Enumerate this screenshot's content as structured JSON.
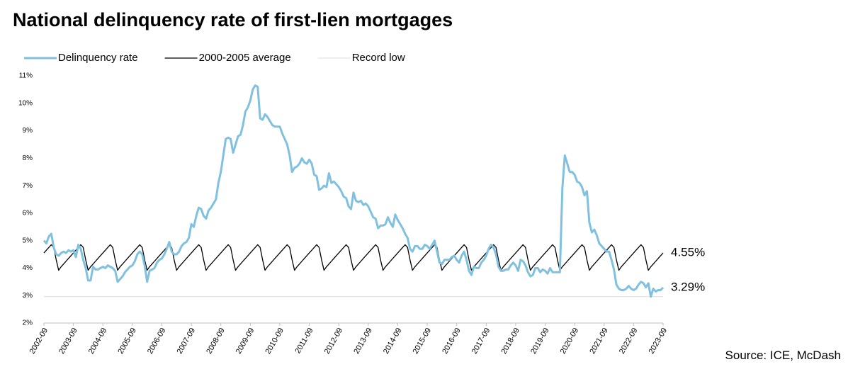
{
  "chart_data": {
    "type": "line",
    "title": "National delinquency rate of first-lien mortgages",
    "source": "Source: ICE, McDash",
    "legend": "top-left",
    "grid": false,
    "ylim": [
      2,
      11
    ],
    "yticks": [
      {
        "value": 2,
        "label": "2%"
      },
      {
        "value": 3,
        "label": "3%"
      },
      {
        "value": 4,
        "label": "4%"
      },
      {
        "value": 5,
        "label": "5%"
      },
      {
        "value": 6,
        "label": "6%"
      },
      {
        "value": 7,
        "label": "7%"
      },
      {
        "value": 8,
        "label": "8%"
      },
      {
        "value": 9,
        "label": "9%"
      },
      {
        "value": 10,
        "label": "10%"
      },
      {
        "value": 11,
        "label": "11%"
      }
    ],
    "categories": [
      "2002-09",
      null,
      null,
      null,
      null,
      null,
      null,
      null,
      null,
      null,
      null,
      null,
      "2003-09",
      null,
      null,
      null,
      null,
      null,
      null,
      null,
      null,
      null,
      null,
      null,
      "2004-09",
      null,
      null,
      null,
      null,
      null,
      null,
      null,
      null,
      null,
      null,
      null,
      "2005-09",
      null,
      null,
      null,
      null,
      null,
      null,
      null,
      null,
      null,
      null,
      null,
      "2006-09",
      null,
      null,
      null,
      null,
      null,
      null,
      null,
      null,
      null,
      null,
      null,
      "2007-09",
      null,
      null,
      null,
      null,
      null,
      null,
      null,
      null,
      null,
      null,
      null,
      "2008-09",
      null,
      null,
      null,
      null,
      null,
      null,
      null,
      null,
      null,
      null,
      null,
      "2009-09",
      null,
      null,
      null,
      null,
      null,
      null,
      null,
      null,
      null,
      null,
      null,
      "2010-09",
      null,
      null,
      null,
      null,
      null,
      null,
      null,
      null,
      null,
      null,
      null,
      "2011-09",
      null,
      null,
      null,
      null,
      null,
      null,
      null,
      null,
      null,
      null,
      null,
      "2012-09",
      null,
      null,
      null,
      null,
      null,
      null,
      null,
      null,
      null,
      null,
      null,
      "2013-09",
      null,
      null,
      null,
      null,
      null,
      null,
      null,
      null,
      null,
      null,
      null,
      "2014-09",
      null,
      null,
      null,
      null,
      null,
      null,
      null,
      null,
      null,
      null,
      null,
      "2015-09",
      null,
      null,
      null,
      null,
      null,
      null,
      null,
      null,
      null,
      null,
      null,
      "2016-09",
      null,
      null,
      null,
      null,
      null,
      null,
      null,
      null,
      null,
      null,
      null,
      "2017-09",
      null,
      null,
      null,
      null,
      null,
      null,
      null,
      null,
      null,
      null,
      null,
      "2018-09",
      null,
      null,
      null,
      null,
      null,
      null,
      null,
      null,
      null,
      null,
      null,
      "2019-09",
      null,
      null,
      null,
      null,
      null,
      null,
      null,
      null,
      null,
      null,
      null,
      "2020-09",
      null,
      null,
      null,
      null,
      null,
      null,
      null,
      null,
      null,
      null,
      null,
      "2021-09",
      null,
      null,
      null,
      null,
      null,
      null,
      null,
      null,
      null,
      null,
      null,
      "2022-09",
      null,
      null,
      null,
      null,
      null,
      null,
      null,
      null,
      null,
      null,
      null,
      "2023-09"
    ],
    "series": [
      {
        "name": "Delinquency rate",
        "color": "#7fc1de",
        "width": 3,
        "values": [
          5.0,
          4.9,
          5.15,
          5.25,
          4.75,
          4.5,
          4.45,
          4.55,
          4.6,
          4.55,
          4.65,
          4.6,
          4.65,
          4.4,
          4.85,
          4.7,
          4.3,
          4.0,
          3.55,
          3.55,
          4.05,
          3.95,
          3.95,
          4.0,
          4.05,
          4.0,
          4.1,
          4.05,
          4.0,
          3.9,
          3.5,
          3.6,
          3.7,
          3.85,
          3.95,
          4.05,
          4.1,
          4.25,
          4.5,
          4.6,
          4.5,
          4.1,
          3.5,
          3.9,
          3.95,
          4.0,
          4.2,
          4.3,
          4.35,
          4.5,
          4.7,
          4.95,
          4.6,
          4.5,
          4.5,
          4.6,
          4.8,
          4.9,
          4.95,
          5.1,
          5.6,
          5.5,
          5.9,
          6.2,
          6.15,
          5.9,
          5.8,
          6.1,
          6.2,
          6.35,
          6.5,
          7.1,
          7.5,
          8.1,
          8.7,
          8.75,
          8.7,
          8.2,
          8.5,
          8.8,
          8.85,
          9.2,
          9.7,
          9.85,
          10.1,
          10.5,
          10.65,
          10.6,
          9.45,
          9.4,
          9.6,
          9.5,
          9.35,
          9.2,
          9.15,
          9.15,
          9.15,
          8.9,
          8.7,
          8.5,
          8.1,
          7.5,
          7.65,
          7.7,
          7.8,
          8.0,
          7.85,
          7.8,
          7.95,
          7.8,
          7.4,
          7.35,
          6.85,
          6.9,
          7.0,
          6.95,
          7.45,
          7.1,
          7.15,
          7.05,
          6.95,
          6.8,
          6.6,
          6.55,
          6.25,
          6.15,
          6.75,
          6.45,
          6.4,
          6.45,
          6.3,
          6.35,
          6.25,
          6.05,
          5.85,
          5.8,
          5.45,
          5.55,
          5.55,
          5.6,
          5.85,
          5.65,
          5.5,
          5.95,
          5.75,
          5.6,
          5.45,
          5.25,
          5.1,
          4.7,
          4.6,
          4.8,
          4.8,
          4.7,
          4.7,
          4.85,
          4.8,
          4.7,
          4.85,
          5.0,
          4.6,
          4.2,
          4.15,
          4.3,
          4.3,
          4.3,
          4.4,
          4.45,
          4.3,
          4.2,
          4.45,
          4.6,
          4.3,
          3.9,
          3.75,
          4.05,
          4.0,
          4.0,
          4.2,
          4.3,
          4.45,
          4.7,
          4.85,
          4.75,
          4.5,
          4.05,
          3.9,
          3.9,
          3.95,
          3.95,
          4.1,
          4.2,
          4.1,
          3.9,
          4.3,
          4.25,
          4.1,
          3.85,
          3.7,
          3.75,
          4.0,
          4.0,
          3.85,
          3.95,
          3.9,
          3.8,
          4.0,
          3.85,
          3.85,
          3.85,
          3.85,
          6.9,
          8.1,
          7.8,
          7.5,
          7.5,
          7.4,
          7.15,
          7.1,
          6.95,
          6.65,
          6.8,
          5.65,
          5.3,
          5.4,
          5.2,
          4.9,
          4.8,
          4.7,
          4.6,
          4.6,
          4.3,
          3.95,
          3.4,
          3.25,
          3.2,
          3.2,
          3.25,
          3.35,
          3.25,
          3.2,
          3.25,
          3.4,
          3.5,
          3.45,
          3.3,
          3.45,
          2.96,
          3.25,
          3.15,
          3.2,
          3.2,
          3.29
        ]
      },
      {
        "name": "2000-2005 average",
        "color": "#000000",
        "width": 1.3,
        "values": [
          4.55,
          4.65,
          4.75,
          4.85,
          4.75,
          4.3,
          3.92,
          4.05,
          4.15,
          4.25,
          4.35,
          4.45,
          4.55,
          4.65,
          4.75,
          4.85,
          4.75,
          4.3,
          3.92,
          4.05,
          4.15,
          4.25,
          4.35,
          4.45,
          4.55,
          4.65,
          4.75,
          4.85,
          4.75,
          4.3,
          3.92,
          4.05,
          4.15,
          4.25,
          4.35,
          4.45,
          4.55,
          4.65,
          4.75,
          4.85,
          4.75,
          4.3,
          3.92,
          4.05,
          4.15,
          4.25,
          4.35,
          4.45,
          4.55,
          4.65,
          4.75,
          4.85,
          4.75,
          4.3,
          3.92,
          4.05,
          4.15,
          4.25,
          4.35,
          4.45,
          4.55,
          4.65,
          4.75,
          4.85,
          4.75,
          4.3,
          3.92,
          4.05,
          4.15,
          4.25,
          4.35,
          4.45,
          4.55,
          4.65,
          4.75,
          4.85,
          4.75,
          4.3,
          3.92,
          4.05,
          4.15,
          4.25,
          4.35,
          4.45,
          4.55,
          4.65,
          4.75,
          4.85,
          4.75,
          4.3,
          3.92,
          4.05,
          4.15,
          4.25,
          4.35,
          4.45,
          4.55,
          4.65,
          4.75,
          4.85,
          4.75,
          4.3,
          3.92,
          4.05,
          4.15,
          4.25,
          4.35,
          4.45,
          4.55,
          4.65,
          4.75,
          4.85,
          4.75,
          4.3,
          3.92,
          4.05,
          4.15,
          4.25,
          4.35,
          4.45,
          4.55,
          4.65,
          4.75,
          4.85,
          4.75,
          4.3,
          3.92,
          4.05,
          4.15,
          4.25,
          4.35,
          4.45,
          4.55,
          4.65,
          4.75,
          4.85,
          4.75,
          4.3,
          3.92,
          4.05,
          4.15,
          4.25,
          4.35,
          4.45,
          4.55,
          4.65,
          4.75,
          4.85,
          4.75,
          4.3,
          3.92,
          4.05,
          4.15,
          4.25,
          4.35,
          4.45,
          4.55,
          4.65,
          4.75,
          4.85,
          4.75,
          4.3,
          3.92,
          4.05,
          4.15,
          4.25,
          4.35,
          4.45,
          4.55,
          4.65,
          4.75,
          4.85,
          4.75,
          4.3,
          3.92,
          4.05,
          4.15,
          4.25,
          4.35,
          4.45,
          4.55,
          4.65,
          4.75,
          4.85,
          4.75,
          4.3,
          3.92,
          4.05,
          4.15,
          4.25,
          4.35,
          4.45,
          4.55,
          4.65,
          4.75,
          4.85,
          4.75,
          4.3,
          3.92,
          4.05,
          4.15,
          4.25,
          4.35,
          4.45,
          4.55,
          4.65,
          4.75,
          4.85,
          4.75,
          4.3,
          3.92,
          4.05,
          4.15,
          4.25,
          4.35,
          4.45,
          4.55,
          4.65,
          4.75,
          4.85,
          4.75,
          4.3,
          3.92,
          4.05,
          4.15,
          4.25,
          4.35,
          4.45,
          4.55,
          4.65,
          4.75,
          4.85,
          4.75,
          4.3,
          3.92,
          4.05,
          4.15,
          4.25,
          4.35,
          4.45,
          4.55,
          4.65,
          4.75,
          4.85,
          4.75,
          4.3,
          3.92,
          4.05,
          4.15,
          4.25,
          4.35,
          4.45,
          4.55
        ]
      }
    ],
    "hlines": [
      {
        "name": "Record low",
        "value": 2.96,
        "color": "#dcdcdc"
      }
    ],
    "annotations": [
      {
        "text": "4.55%",
        "value": 4.55
      },
      {
        "text": "3.29%",
        "value": 3.29
      }
    ]
  }
}
